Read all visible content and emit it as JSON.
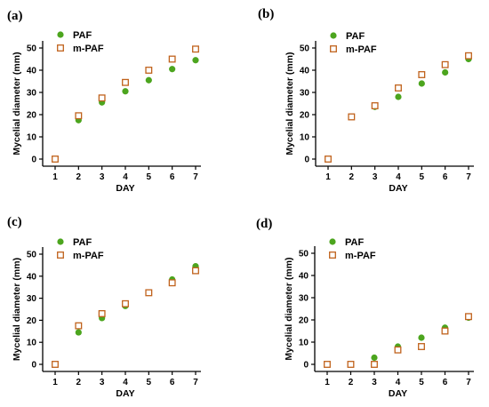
{
  "colors": {
    "paf": "#4ca51e",
    "mpaf": "#c0621c",
    "axis": "#000000"
  },
  "chart_data": [
    {
      "panel": "(a)",
      "type": "scatter",
      "xlabel": "DAY",
      "ylabel": "Mycelial diameter (mm)",
      "xlim": [
        1,
        7
      ],
      "ylim": [
        0,
        50
      ],
      "xticks": [
        1,
        2,
        3,
        4,
        5,
        6,
        7
      ],
      "yticks": [
        0,
        10,
        20,
        30,
        40,
        50
      ],
      "legend_position": "top-left",
      "series": [
        {
          "name": "PAF",
          "marker": "filled-circle",
          "x": [
            1,
            2,
            3,
            4,
            5,
            6,
            7
          ],
          "values": [
            0,
            17.5,
            25.5,
            30.5,
            35.5,
            40.5,
            44.5
          ]
        },
        {
          "name": "m-PAF",
          "marker": "open-square",
          "x": [
            1,
            2,
            3,
            4,
            5,
            6,
            7
          ],
          "values": [
            0,
            19.5,
            27.5,
            34.5,
            40,
            45,
            49.5
          ]
        }
      ]
    },
    {
      "panel": "(b)",
      "type": "scatter",
      "xlabel": "DAY",
      "ylabel": "Mycelial diameter (mm)",
      "xlim": [
        1,
        7
      ],
      "ylim": [
        0,
        50
      ],
      "xticks": [
        1,
        2,
        3,
        4,
        5,
        6,
        7
      ],
      "yticks": [
        0,
        10,
        20,
        30,
        40,
        50
      ],
      "legend_position": "top-left",
      "series": [
        {
          "name": "PAF",
          "marker": "filled-circle",
          "x": [
            1,
            2,
            3,
            4,
            5,
            6,
            7
          ],
          "values": [
            0,
            19,
            23.5,
            28,
            34,
            39,
            45
          ]
        },
        {
          "name": "m-PAF",
          "marker": "open-square",
          "x": [
            1,
            2,
            3,
            4,
            5,
            6,
            7
          ],
          "values": [
            0,
            19,
            24,
            32,
            38,
            42.5,
            46.5
          ]
        }
      ]
    },
    {
      "panel": "(c)",
      "type": "scatter",
      "xlabel": "DAY",
      "ylabel": "Mycelial diameter (mm)",
      "xlim": [
        1,
        7
      ],
      "ylim": [
        0,
        50
      ],
      "xticks": [
        1,
        2,
        3,
        4,
        5,
        6,
        7
      ],
      "yticks": [
        0,
        10,
        20,
        30,
        40,
        50
      ],
      "legend_position": "top-left",
      "series": [
        {
          "name": "PAF",
          "marker": "filled-circle",
          "x": [
            1,
            2,
            3,
            4,
            5,
            6,
            7
          ],
          "values": [
            0,
            14.5,
            21,
            26.5,
            32.5,
            38.5,
            44.5
          ]
        },
        {
          "name": "m-PAF",
          "marker": "open-square",
          "x": [
            1,
            2,
            3,
            4,
            5,
            6,
            7
          ],
          "values": [
            0,
            17.5,
            23,
            27.5,
            32.5,
            37,
            42.5
          ]
        }
      ]
    },
    {
      "panel": "(d)",
      "type": "scatter",
      "xlabel": "DAY",
      "ylabel": "Mycelial diameter (mm)",
      "xlim": [
        1,
        7
      ],
      "ylim": [
        0,
        50
      ],
      "xticks": [
        1,
        2,
        3,
        4,
        5,
        6,
        7
      ],
      "yticks": [
        0,
        10,
        20,
        30,
        40,
        50
      ],
      "legend_position": "top-left",
      "series": [
        {
          "name": "PAF",
          "marker": "filled-circle",
          "x": [
            1,
            2,
            3,
            4,
            5,
            6,
            7
          ],
          "values": [
            0,
            0,
            3,
            8,
            12,
            16.5,
            21
          ]
        },
        {
          "name": "m-PAF",
          "marker": "open-square",
          "x": [
            1,
            2,
            3,
            4,
            5,
            6,
            7
          ],
          "values": [
            0,
            0,
            0,
            6.5,
            8,
            15,
            21.5
          ]
        }
      ]
    }
  ]
}
